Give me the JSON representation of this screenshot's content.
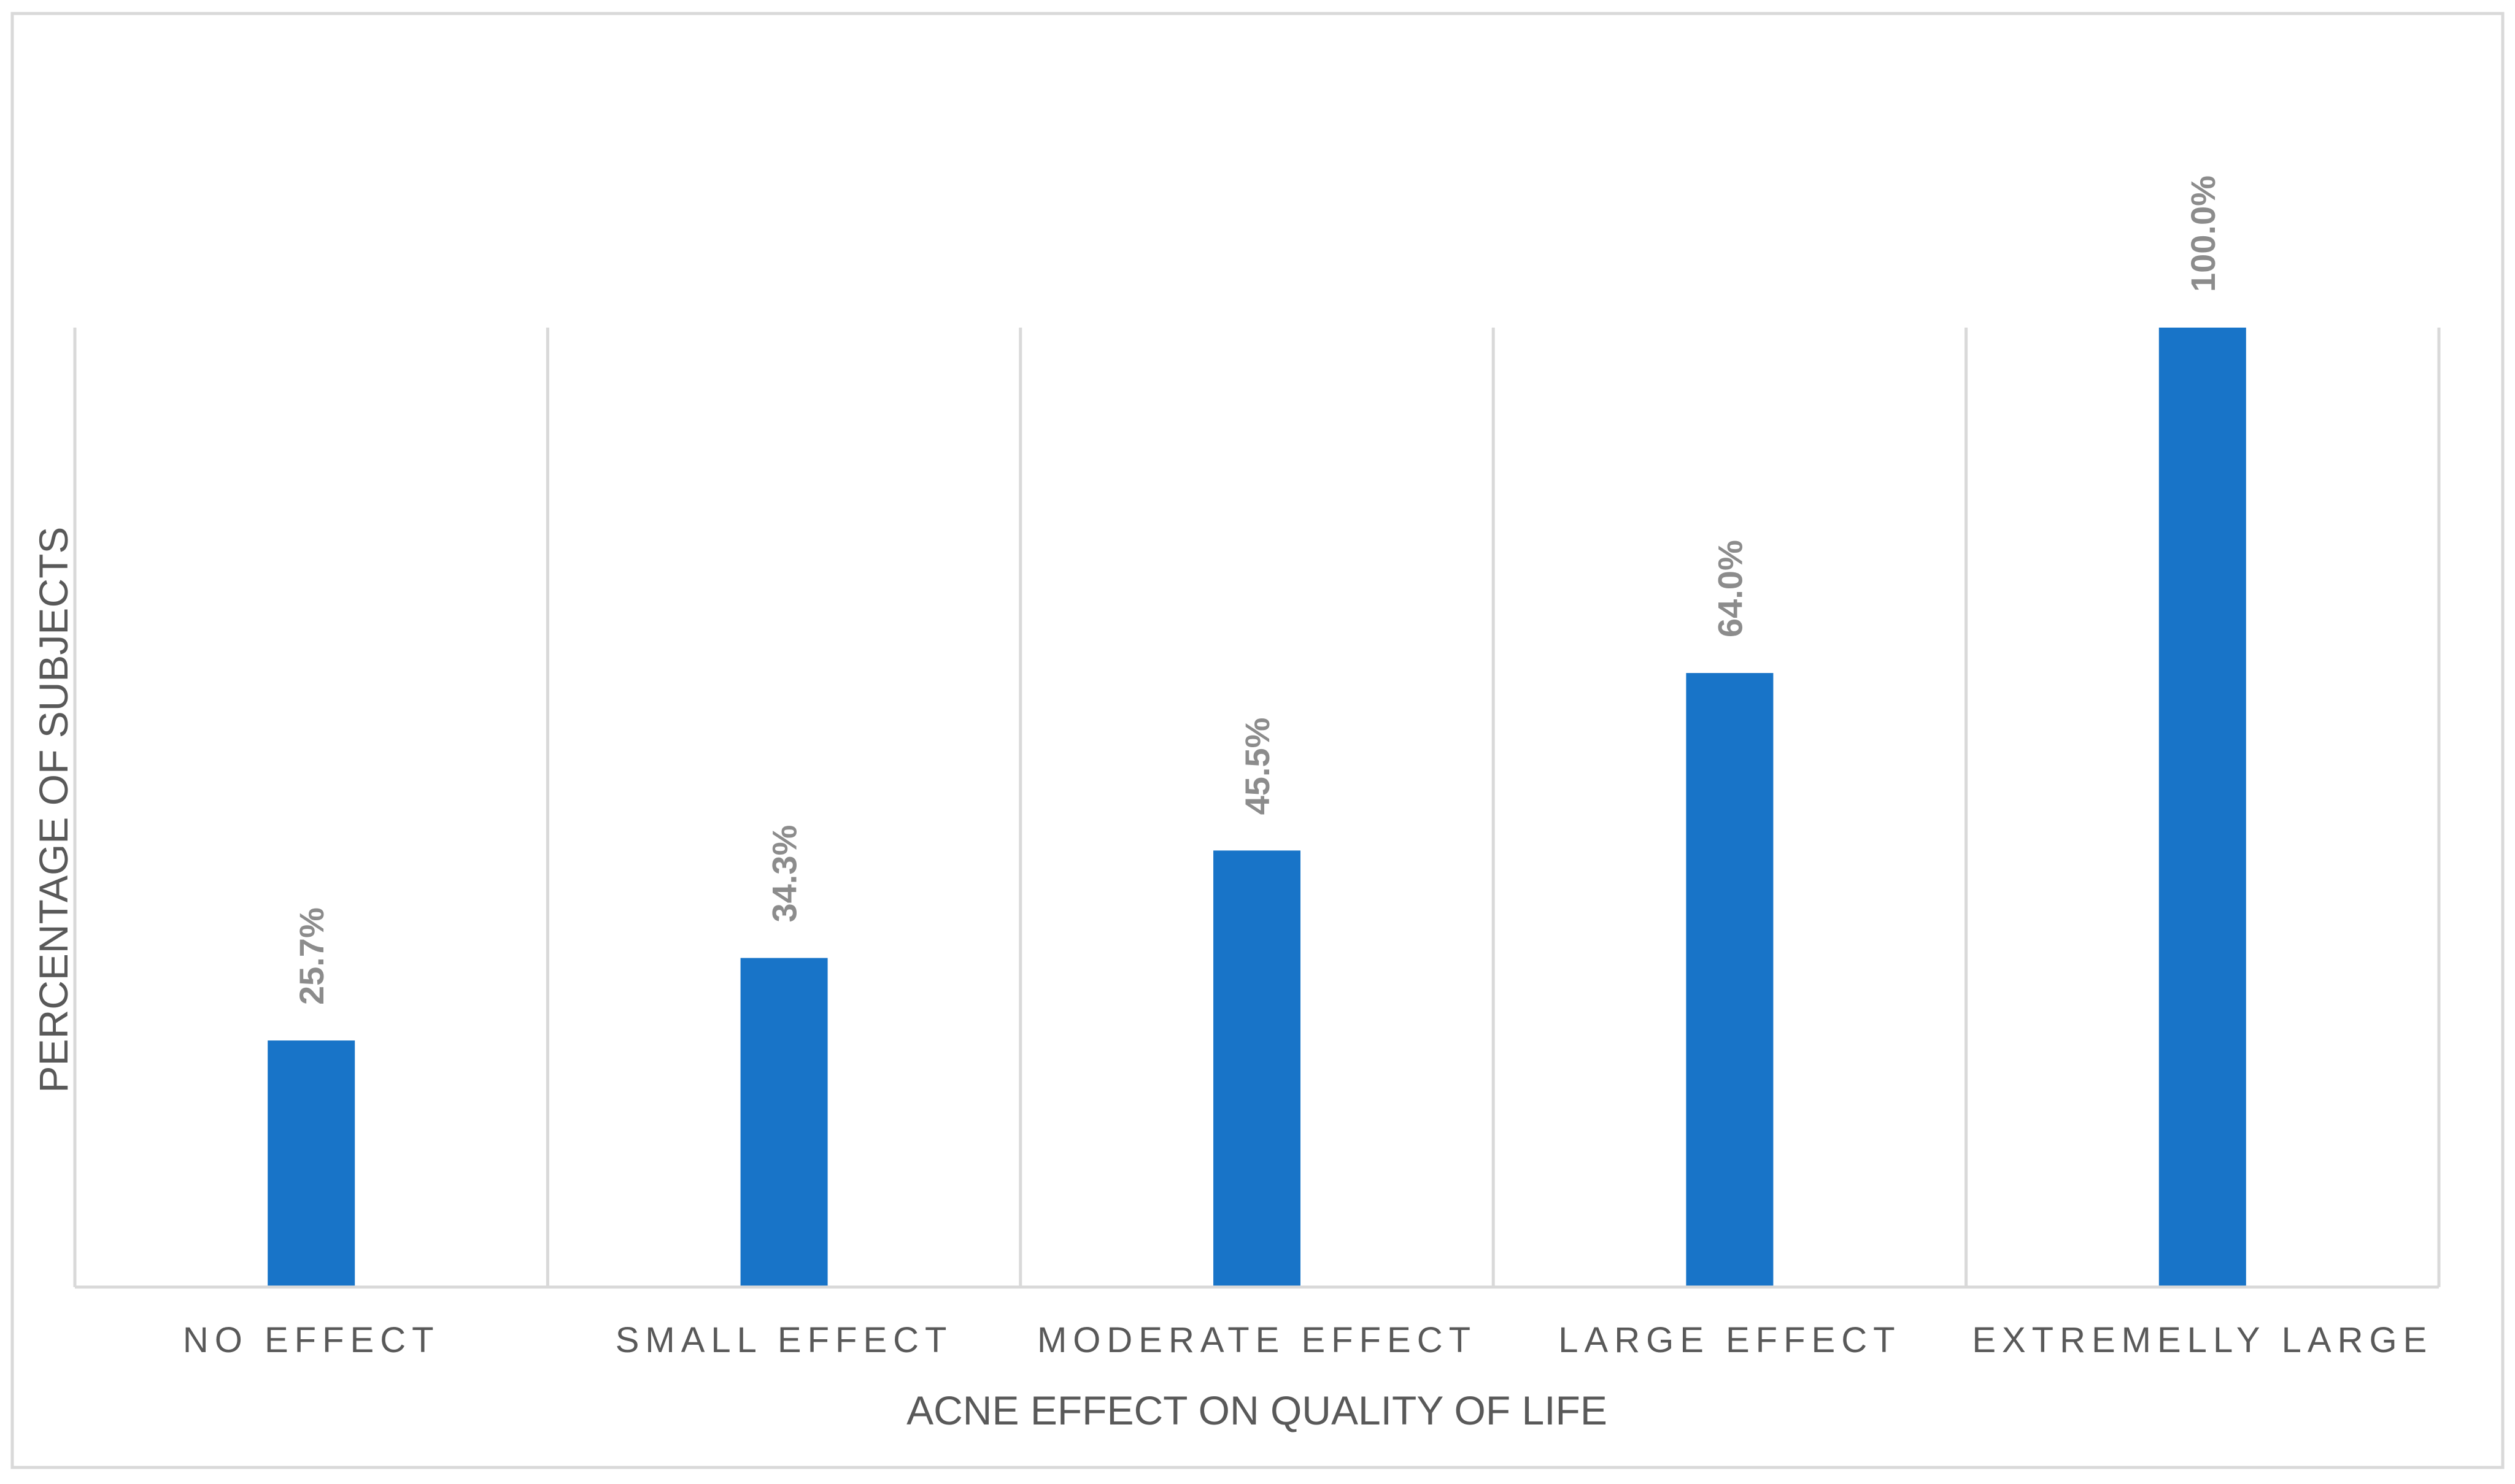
{
  "chart_data": {
    "type": "bar",
    "title": "",
    "xlabel": "ACNE EFFECT ON QUALITY OF LIFE",
    "ylabel": "PERCENTAGE OF SUBJECTS",
    "categories": [
      "NO EFFECT",
      "SMALL EFFECT",
      "MODERATE EFFECT",
      "LARGE EFFECT",
      "EXTREMELLY LARGE"
    ],
    "values": [
      25.7,
      34.3,
      45.5,
      64.0,
      100.0
    ],
    "value_labels": [
      "25.7%",
      "34.3%",
      "45.5%",
      "64.0%",
      "100.0%"
    ],
    "ylim": [
      0,
      100
    ],
    "grid": true,
    "legend": "none",
    "bar_color": "#1874c8",
    "grid_color": "#d9d9d9",
    "label_color": "#8c8c8c",
    "text_color": "#595959"
  }
}
